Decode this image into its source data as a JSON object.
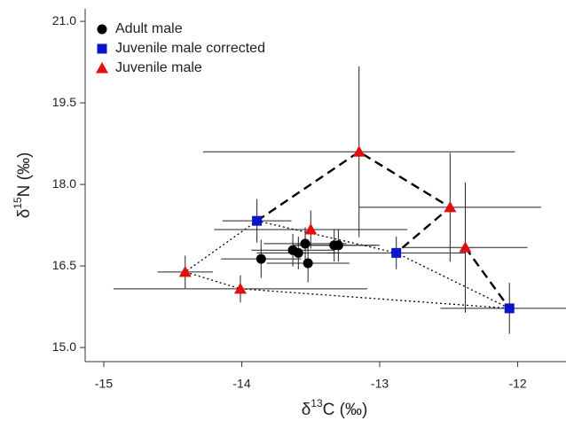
{
  "chart_data": {
    "type": "scatter",
    "xlabel": {
      "prefix": "δ",
      "sup": "13",
      "suffix": "C (‰)"
    },
    "ylabel": {
      "prefix": "δ",
      "sup": "15",
      "suffix": "N (‰)"
    },
    "xlim": [
      -15.135,
      -11.65
    ],
    "ylim": [
      14.74,
      21.23
    ],
    "xticks": [
      -15,
      -14,
      -13,
      -12
    ],
    "yticks": [
      {
        "value": 15,
        "label": "15.0"
      },
      {
        "value": 16.5,
        "label": "16.5"
      },
      {
        "value": 18,
        "label": "18.0"
      },
      {
        "value": 19.5,
        "label": "19.5"
      },
      {
        "value": 21,
        "label": "21.0"
      }
    ],
    "legend": "top-left",
    "series": [
      {
        "name": "Adult male",
        "color": "#000000",
        "marker": "circle",
        "x": [
          -13.86,
          -13.63,
          -13.59,
          -13.54,
          -13.52,
          -13.33,
          -13.3
        ],
        "values": [
          16.63,
          16.79,
          16.74,
          16.91,
          16.55,
          16.88,
          16.88
        ],
        "xerr": [
          0.29,
          0.3,
          0.3,
          0.3,
          0.3,
          0.3,
          0.3
        ],
        "yerr": [
          0.35,
          0.3,
          0.3,
          0.3,
          0.35,
          0.3,
          0.3
        ]
      },
      {
        "name": "Juvenile male corrected",
        "color": "#0a14c8",
        "marker": "square",
        "x": [
          -13.89,
          -12.88,
          -12.06
        ],
        "values": [
          17.33,
          16.74,
          15.72
        ],
        "xerr": [
          0.25,
          0.5,
          0.5
        ],
        "yerr": [
          0.4,
          0.3,
          0.47
        ]
      },
      {
        "name": "Juvenile male",
        "color": "#e01010",
        "marker": "triangle",
        "x": [
          -14.41,
          -14.01,
          -13.5,
          -13.15,
          -12.49,
          -12.38
        ],
        "values": [
          16.39,
          16.08,
          17.17,
          18.6,
          17.58,
          16.84
        ],
        "xerr": [
          0.2,
          0.92,
          0.7,
          1.13,
          0.66,
          0.45
        ],
        "yerr": [
          0.3,
          0.25,
          0.35,
          1.57,
          1.0,
          1.2
        ]
      }
    ]
  }
}
